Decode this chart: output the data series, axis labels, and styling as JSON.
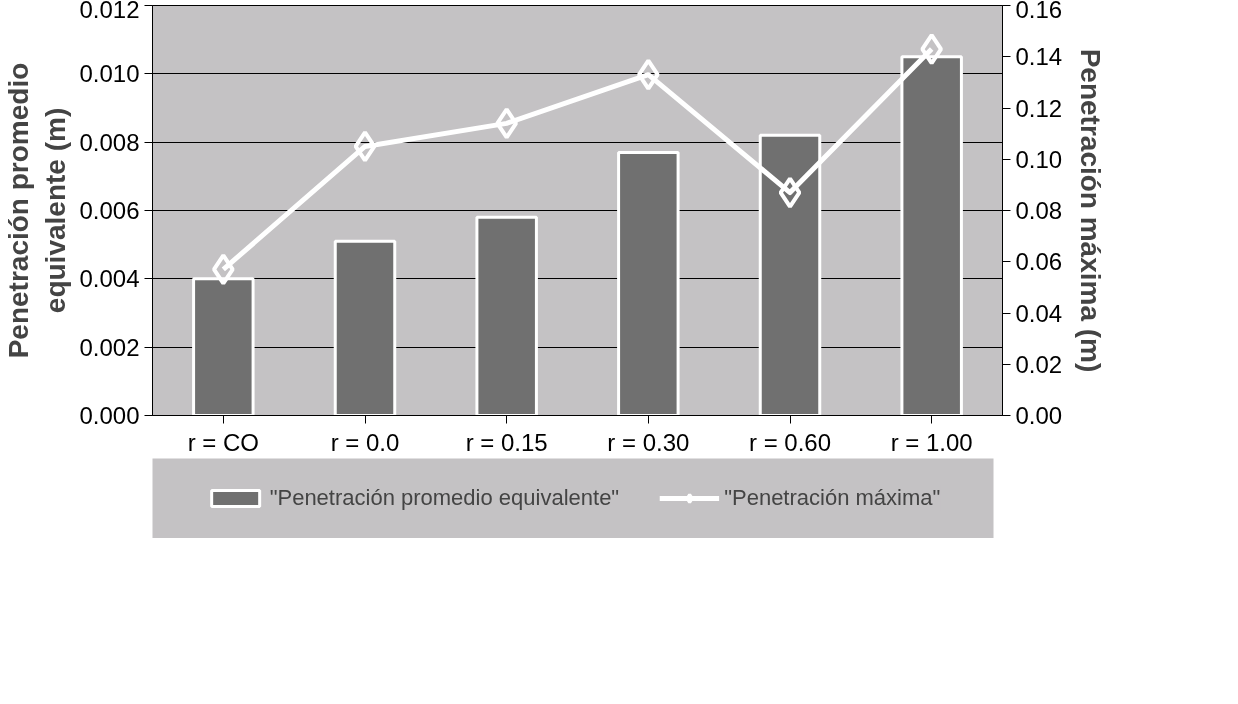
{
  "chart_data": {
    "type": "bar",
    "ylabel": "Penetración promedio equivalente (m)",
    "y2label": "Penetración máxima (m)",
    "categories": [
      "r = CO",
      "r = 0.0",
      "r = 0.15",
      "r = 0.30",
      "r = 0.60",
      "r = 1.00"
    ],
    "series": [
      {
        "name": "\"Penetración promedio equivalente\"",
        "color": "#707070",
        "values": [
          0.004,
          0.0051,
          0.0058,
          0.0077,
          0.0082,
          0.0105
        ]
      },
      {
        "name": "\"Penetración máxima\"",
        "type": "line",
        "axis": "y2",
        "color": "#ffffff",
        "marker": "diamond",
        "values": [
          0.057,
          0.105,
          0.114,
          0.133,
          0.087,
          0.143
        ]
      }
    ],
    "ylim": [
      0,
      0.012
    ],
    "yticks": [
      {
        "value": 0,
        "label": "0.000"
      },
      {
        "value": 0.002,
        "label": "0.002"
      },
      {
        "value": 0.004,
        "label": "0.004"
      },
      {
        "value": 0.006,
        "label": "0.006"
      },
      {
        "value": 0.008,
        "label": "0.008"
      },
      {
        "value": 0.01,
        "label": "0.010"
      },
      {
        "value": 0.012,
        "label": "0.012"
      }
    ],
    "y2lim": [
      0,
      0.16
    ],
    "y2ticks": [
      {
        "value": 0,
        "label": "0.00"
      },
      {
        "value": 0.02,
        "label": "0.02"
      },
      {
        "value": 0.04,
        "label": "0.04"
      },
      {
        "value": 0.06,
        "label": "0.06"
      },
      {
        "value": 0.08,
        "label": "0.08"
      },
      {
        "value": 0.1,
        "label": "0.10"
      },
      {
        "value": 0.12,
        "label": "0.12"
      },
      {
        "value": 0.14,
        "label": "0.14"
      },
      {
        "value": 0.16,
        "label": "0.16"
      }
    ],
    "grid": "y",
    "legend": "bottom"
  }
}
